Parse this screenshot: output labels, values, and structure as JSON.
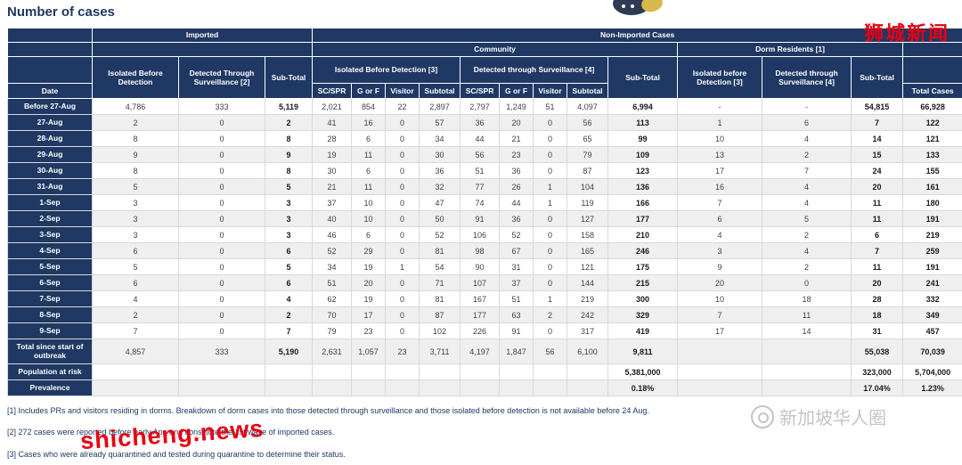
{
  "title": "Number of cases",
  "table": {
    "header_rows": [
      [
        {
          "label": "",
          "name": "corner-blank"
        },
        {
          "label": "Imported",
          "colspan": 3
        },
        {
          "label": "Non-Imported Cases",
          "colspan": 13
        }
      ],
      [
        {
          "label": ""
        },
        {
          "label": "",
          "colspan": 3
        },
        {
          "label": "Community",
          "colspan": 9
        },
        {
          "label": "Dorm Residents [1]",
          "colspan": 3
        },
        {
          "label": ""
        }
      ],
      [
        {
          "label": ""
        },
        {
          "label": "Isolated Before Detection",
          "rowspan": 2
        },
        {
          "label": "Detected Through Surveillance [2]",
          "rowspan": 2
        },
        {
          "label": "Sub-Total",
          "rowspan": 2
        },
        {
          "label": "Isolated Before Detection [3]",
          "colspan": 4
        },
        {
          "label": "Detected through Surveillance [4]",
          "colspan": 4
        },
        {
          "label": "Sub-Total",
          "rowspan": 2
        },
        {
          "label": "Isolated before Detection [3]",
          "rowspan": 2
        },
        {
          "label": "Detected through Surveillance [4]",
          "rowspan": 2
        },
        {
          "label": "Sub-Total",
          "rowspan": 2
        },
        {
          "label": ""
        }
      ],
      [
        {
          "label": "Date"
        },
        {
          "label": "SC/SPR"
        },
        {
          "label": "G or F"
        },
        {
          "label": "Visitor"
        },
        {
          "label": "Subtotal"
        },
        {
          "label": "SC/SPR"
        },
        {
          "label": "G or F"
        },
        {
          "label": "Visitor"
        },
        {
          "label": "Subtotal"
        },
        {
          "label": "Total Cases"
        }
      ]
    ],
    "rows": [
      {
        "date": "Before 27-Aug",
        "cells": [
          "4,786",
          "333",
          "5,119",
          "2,021",
          "854",
          "22",
          "2,897",
          "2,797",
          "1,249",
          "51",
          "4,097",
          "6,994",
          "-",
          "-",
          "54,815",
          "66,928"
        ]
      },
      {
        "date": "27-Aug",
        "cells": [
          "2",
          "0",
          "2",
          "41",
          "16",
          "0",
          "57",
          "36",
          "20",
          "0",
          "56",
          "113",
          "1",
          "6",
          "7",
          "122"
        ]
      },
      {
        "date": "28-Aug",
        "cells": [
          "8",
          "0",
          "8",
          "28",
          "6",
          "0",
          "34",
          "44",
          "21",
          "0",
          "65",
          "99",
          "10",
          "4",
          "14",
          "121"
        ]
      },
      {
        "date": "29-Aug",
        "cells": [
          "9",
          "0",
          "9",
          "19",
          "11",
          "0",
          "30",
          "56",
          "23",
          "0",
          "79",
          "109",
          "13",
          "2",
          "15",
          "133"
        ]
      },
      {
        "date": "30-Aug",
        "cells": [
          "8",
          "0",
          "8",
          "30",
          "6",
          "0",
          "36",
          "51",
          "36",
          "0",
          "87",
          "123",
          "17",
          "7",
          "24",
          "155"
        ]
      },
      {
        "date": "31-Aug",
        "cells": [
          "5",
          "0",
          "5",
          "21",
          "11",
          "0",
          "32",
          "77",
          "26",
          "1",
          "104",
          "136",
          "16",
          "4",
          "20",
          "161"
        ]
      },
      {
        "date": "1-Sep",
        "cells": [
          "3",
          "0",
          "3",
          "37",
          "10",
          "0",
          "47",
          "74",
          "44",
          "1",
          "119",
          "166",
          "7",
          "4",
          "11",
          "180"
        ]
      },
      {
        "date": "2-Sep",
        "cells": [
          "3",
          "0",
          "3",
          "40",
          "10",
          "0",
          "50",
          "91",
          "36",
          "0",
          "127",
          "177",
          "6",
          "5",
          "11",
          "191"
        ]
      },
      {
        "date": "3-Sep",
        "cells": [
          "3",
          "0",
          "3",
          "46",
          "6",
          "0",
          "52",
          "106",
          "52",
          "0",
          "158",
          "210",
          "4",
          "2",
          "6",
          "219"
        ]
      },
      {
        "date": "4-Sep",
        "cells": [
          "6",
          "0",
          "6",
          "52",
          "29",
          "0",
          "81",
          "98",
          "67",
          "0",
          "165",
          "246",
          "3",
          "4",
          "7",
          "259"
        ]
      },
      {
        "date": "5-Sep",
        "cells": [
          "5",
          "0",
          "5",
          "34",
          "19",
          "1",
          "54",
          "90",
          "31",
          "0",
          "121",
          "175",
          "9",
          "2",
          "11",
          "191"
        ]
      },
      {
        "date": "6-Sep",
        "cells": [
          "6",
          "0",
          "6",
          "51",
          "20",
          "0",
          "71",
          "107",
          "37",
          "0",
          "144",
          "215",
          "20",
          "0",
          "20",
          "241"
        ]
      },
      {
        "date": "7-Sep",
        "cells": [
          "4",
          "0",
          "4",
          "62",
          "19",
          "0",
          "81",
          "167",
          "51",
          "1",
          "219",
          "300",
          "10",
          "18",
          "28",
          "332"
        ]
      },
      {
        "date": "8-Sep",
        "cells": [
          "2",
          "0",
          "2",
          "70",
          "17",
          "0",
          "87",
          "177",
          "63",
          "2",
          "242",
          "329",
          "7",
          "11",
          "18",
          "349"
        ]
      },
      {
        "date": "9-Sep",
        "cells": [
          "7",
          "0",
          "7",
          "79",
          "23",
          "0",
          "102",
          "226",
          "91",
          "0",
          "317",
          "419",
          "17",
          "14",
          "31",
          "457"
        ]
      },
      {
        "date": "Total since start of outbreak",
        "cells": [
          "4,857",
          "333",
          "5,190",
          "2,631",
          "1,057",
          "23",
          "3,711",
          "4,197",
          "1,847",
          "56",
          "6,100",
          "9,811",
          "",
          "",
          "55,038",
          "70,039"
        ]
      },
      {
        "date": "Population at risk",
        "cells": [
          "",
          "",
          "",
          "",
          "",
          "",
          "",
          "",
          "",
          "",
          "",
          "5,381,000",
          "",
          "",
          "323,000",
          "5,704,000"
        ]
      },
      {
        "date": "Prevalence",
        "cells": [
          "",
          "",
          "",
          "",
          "",
          "",
          "",
          "",
          "",
          "",
          "",
          "0.18%",
          "",
          "",
          "17.04%",
          "1.23%"
        ]
      }
    ]
  },
  "footnotes": [
    "[1] Includes PRs and visitors residing in dorms. Breakdown of dorm cases into those detected through surveillance and those isolated before detection is not available before 24 Aug.",
    "[2] 272 cases were reported before early Apr, and constitute the 1st wave of imported cases.",
    "[3] Cases who were already quarantined and tested during quarantine to determine their status."
  ],
  "watermarks": {
    "top_right": "狮城新闻",
    "bottom_left": "shicheng.news",
    "right": "新加坡华人圈"
  },
  "colors": {
    "header_navy": "#1f3864",
    "watermark_red": "#e60012",
    "watermark_gray": "#c4c4c4",
    "row_stripe": "#efefef"
  }
}
